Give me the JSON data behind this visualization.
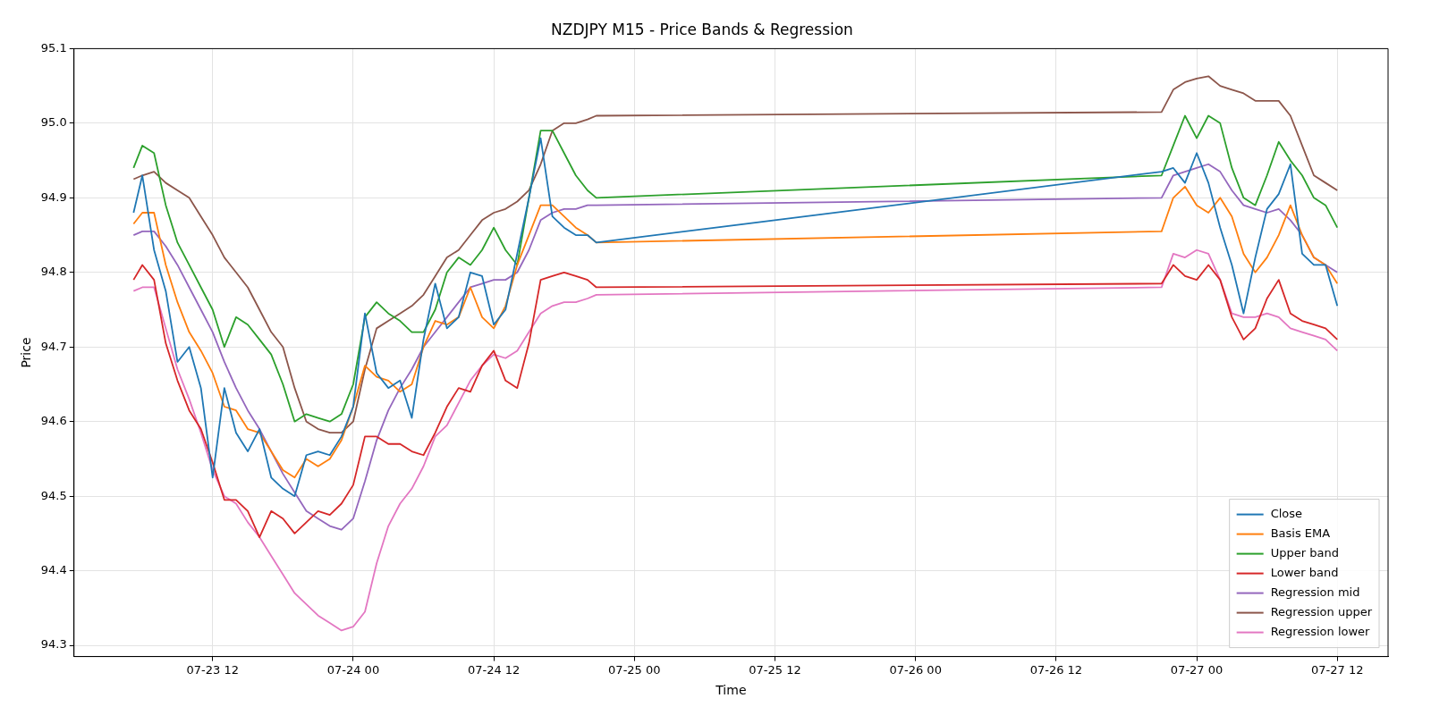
{
  "chart_data": {
    "type": "line",
    "title": "NZDJPY M15 - Price Bands & Regression",
    "xlabel": "Time",
    "ylabel": "Price",
    "x": [
      "--07-23T05:15",
      "--07-23T06:00",
      "--07-23T07:00",
      "--07-23T08:00",
      "--07-23T09:00",
      "--07-23T10:00",
      "--07-23T11:00",
      "--07-23T12:00",
      "--07-23T13:00",
      "--07-23T14:00",
      "--07-23T15:00",
      "--07-23T16:00",
      "--07-23T17:00",
      "--07-23T18:00",
      "--07-23T19:00",
      "--07-23T20:00",
      "--07-23T21:00",
      "--07-23T22:00",
      "--07-23T23:00",
      "--07-24T00:00",
      "--07-24T01:00",
      "--07-24T02:00",
      "--07-24T03:00",
      "--07-24T04:00",
      "--07-24T05:00",
      "--07-24T06:00",
      "--07-24T07:00",
      "--07-24T08:00",
      "--07-24T09:00",
      "--07-24T10:00",
      "--07-24T11:00",
      "--07-24T12:00",
      "--07-24T13:00",
      "--07-24T14:00",
      "--07-24T15:00",
      "--07-24T16:00",
      "--07-24T17:00",
      "--07-24T18:00",
      "--07-24T19:00",
      "--07-24T20:00",
      "--07-24T20:45",
      "--07-26T21:00",
      "--07-26T22:00",
      "--07-26T23:00",
      "--07-27T00:00",
      "--07-27T01:00",
      "--07-27T02:00",
      "--07-27T03:00",
      "--07-27T04:00",
      "--07-27T05:00",
      "--07-27T06:00",
      "--07-27T07:00",
      "--07-27T08:00",
      "--07-27T09:00",
      "--07-27T10:00",
      "--07-27T11:00",
      "--07-27T12:00"
    ],
    "series": [
      {
        "name": "Close",
        "color": "#1f77b4",
        "values": [
          94.88,
          94.93,
          94.83,
          94.775,
          94.68,
          94.7,
          94.645,
          94.525,
          94.645,
          94.585,
          94.56,
          94.59,
          94.525,
          94.51,
          94.5,
          94.555,
          94.56,
          94.555,
          94.58,
          94.62,
          94.745,
          94.665,
          94.645,
          94.655,
          94.605,
          94.71,
          94.785,
          94.725,
          94.74,
          94.8,
          94.795,
          94.73,
          94.75,
          94.825,
          94.9,
          94.98,
          94.875,
          94.86,
          94.85,
          94.85,
          94.84,
          94.935,
          94.94,
          94.92,
          94.96,
          94.92,
          94.86,
          94.81,
          94.745,
          94.82,
          94.885,
          94.905,
          94.945,
          94.825,
          94.81,
          94.81,
          94.755
        ]
      },
      {
        "name": "Basis EMA",
        "color": "#ff7f0e",
        "values": [
          94.865,
          94.88,
          94.88,
          94.81,
          94.76,
          94.72,
          94.695,
          94.665,
          94.62,
          94.615,
          94.59,
          94.585,
          94.56,
          94.535,
          94.525,
          94.55,
          94.54,
          94.55,
          94.575,
          94.62,
          94.675,
          94.66,
          94.655,
          94.64,
          94.65,
          94.7,
          94.735,
          94.73,
          94.74,
          94.78,
          94.74,
          94.725,
          94.755,
          94.81,
          94.85,
          94.89,
          94.89,
          94.875,
          94.86,
          94.85,
          94.84,
          94.855,
          94.9,
          94.915,
          94.89,
          94.88,
          94.9,
          94.875,
          94.825,
          94.8,
          94.82,
          94.85,
          94.89,
          94.85,
          94.82,
          94.81,
          94.785
        ]
      },
      {
        "name": "Upper band",
        "color": "#2ca02c",
        "values": [
          94.94,
          94.97,
          94.96,
          94.89,
          94.84,
          94.81,
          94.78,
          94.75,
          94.7,
          94.74,
          94.73,
          94.71,
          94.69,
          94.65,
          94.6,
          94.61,
          94.605,
          94.6,
          94.61,
          94.65,
          94.74,
          94.76,
          94.745,
          94.735,
          94.72,
          94.72,
          94.75,
          94.8,
          94.82,
          94.81,
          94.83,
          94.86,
          94.83,
          94.81,
          94.9,
          94.99,
          94.99,
          94.96,
          94.93,
          94.91,
          94.9,
          94.93,
          94.97,
          95.01,
          94.98,
          95.01,
          95.0,
          94.94,
          94.9,
          94.89,
          94.93,
          94.975,
          94.95,
          94.93,
          94.9,
          94.89,
          94.86
        ]
      },
      {
        "name": "Lower band",
        "color": "#d62728",
        "values": [
          94.79,
          94.81,
          94.79,
          94.705,
          94.655,
          94.615,
          94.59,
          94.545,
          94.495,
          94.495,
          94.48,
          94.445,
          94.48,
          94.47,
          94.45,
          94.465,
          94.48,
          94.475,
          94.49,
          94.515,
          94.58,
          94.58,
          94.57,
          94.57,
          94.56,
          94.555,
          94.585,
          94.62,
          94.645,
          94.64,
          94.675,
          94.695,
          94.655,
          94.645,
          94.705,
          94.79,
          94.795,
          94.8,
          94.795,
          94.79,
          94.78,
          94.785,
          94.81,
          94.795,
          94.79,
          94.81,
          94.79,
          94.74,
          94.71,
          94.725,
          94.765,
          94.79,
          94.745,
          94.735,
          94.73,
          94.725,
          94.71
        ]
      },
      {
        "name": "Regression mid",
        "color": "#9467bd",
        "values": [
          94.85,
          94.855,
          94.855,
          94.835,
          94.81,
          94.78,
          94.75,
          94.72,
          94.68,
          94.645,
          94.615,
          94.59,
          94.56,
          94.53,
          94.505,
          94.48,
          94.47,
          94.46,
          94.455,
          94.47,
          94.52,
          94.575,
          94.615,
          94.645,
          94.67,
          94.7,
          94.72,
          94.74,
          94.76,
          94.78,
          94.785,
          94.79,
          94.79,
          94.8,
          94.83,
          94.87,
          94.88,
          94.885,
          94.885,
          94.89,
          94.89,
          94.9,
          94.93,
          94.935,
          94.94,
          94.945,
          94.935,
          94.91,
          94.89,
          94.885,
          94.88,
          94.885,
          94.87,
          94.85,
          94.82,
          94.81,
          94.8
        ]
      },
      {
        "name": "Regression upper",
        "color": "#8c564b",
        "values": [
          94.925,
          94.93,
          94.935,
          94.92,
          94.91,
          94.9,
          94.875,
          94.85,
          94.82,
          94.8,
          94.78,
          94.75,
          94.72,
          94.7,
          94.645,
          94.6,
          94.59,
          94.585,
          94.585,
          94.6,
          94.67,
          94.725,
          94.735,
          94.745,
          94.755,
          94.77,
          94.795,
          94.82,
          94.83,
          94.85,
          94.87,
          94.88,
          94.885,
          94.895,
          94.91,
          94.945,
          94.99,
          95.0,
          95.0,
          95.005,
          95.01,
          95.015,
          95.045,
          95.055,
          95.06,
          95.063,
          95.05,
          95.045,
          95.04,
          95.03,
          95.03,
          95.03,
          95.01,
          94.97,
          94.93,
          94.92,
          94.91
        ]
      },
      {
        "name": "Regression lower",
        "color": "#e377c2",
        "values": [
          94.775,
          94.78,
          94.78,
          94.725,
          94.67,
          94.63,
          94.585,
          94.535,
          94.5,
          94.49,
          94.465,
          94.445,
          94.42,
          94.395,
          94.37,
          94.355,
          94.34,
          94.33,
          94.32,
          94.325,
          94.345,
          94.41,
          94.46,
          94.49,
          94.51,
          94.54,
          94.58,
          94.595,
          94.625,
          94.655,
          94.675,
          94.69,
          94.685,
          94.695,
          94.72,
          94.745,
          94.755,
          94.76,
          94.76,
          94.765,
          94.77,
          94.78,
          94.825,
          94.82,
          94.83,
          94.825,
          94.79,
          94.745,
          94.74,
          94.74,
          94.745,
          94.74,
          94.725,
          94.72,
          94.715,
          94.71,
          94.695
        ]
      }
    ],
    "xlim": [
      "--07-23T00:10",
      "--07-27T16:20"
    ],
    "xticks": [
      {
        "value": "--07-23T12:00",
        "label": "07-23 12"
      },
      {
        "value": "--07-24T00:00",
        "label": "07-24 00"
      },
      {
        "value": "--07-24T12:00",
        "label": "07-24 12"
      },
      {
        "value": "--07-25T00:00",
        "label": "07-25 00"
      },
      {
        "value": "--07-25T12:00",
        "label": "07-25 12"
      },
      {
        "value": "--07-26T00:00",
        "label": "07-26 00"
      },
      {
        "value": "--07-26T12:00",
        "label": "07-26 12"
      },
      {
        "value": "--07-27T00:00",
        "label": "07-27 00"
      },
      {
        "value": "--07-27T12:00",
        "label": "07-27 12"
      }
    ],
    "ylim": [
      94.285,
      95.1
    ],
    "yticks": [
      94.3,
      94.4,
      94.5,
      94.6,
      94.7,
      94.8,
      94.9,
      {
        "value": 95,
        "label": "95.0"
      },
      95.1
    ],
    "grid": true,
    "legend": "bottom right",
    "line_style": "solid",
    "marker": "none"
  }
}
